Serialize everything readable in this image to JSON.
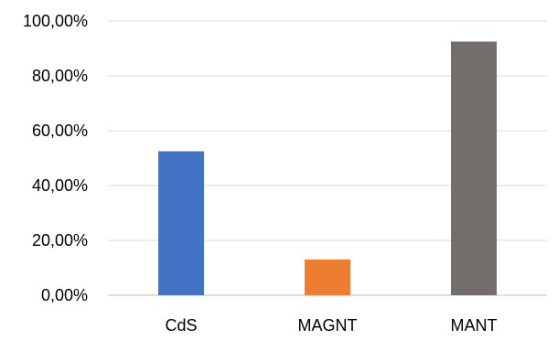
{
  "chart_data": {
    "type": "bar",
    "title": "",
    "xlabel": "",
    "ylabel": "",
    "categories": [
      "CdS",
      "MAGNT",
      "MANT"
    ],
    "values": [
      52.5,
      13.0,
      92.5
    ],
    "colors": [
      "#4472C4",
      "#ED7D31",
      "#736E6C"
    ],
    "ylim": [
      0,
      100
    ],
    "yticks": [
      0,
      20,
      40,
      60,
      80,
      100
    ],
    "ytick_labels": [
      "0,00%",
      "20,00%",
      "40,00%",
      "60,00%",
      "80,00%",
      "100,00%"
    ],
    "grid": true,
    "legend": "none"
  }
}
